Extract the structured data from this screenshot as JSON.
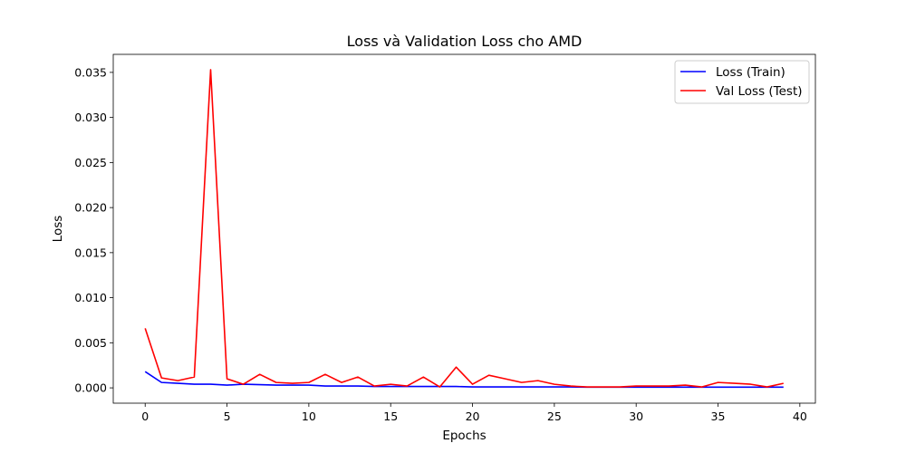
{
  "chart_data": {
    "type": "line",
    "title": "Loss và Validation Loss cho AMD",
    "xlabel": "Epochs",
    "ylabel": "Loss",
    "xlim": [
      -1.95,
      40.95
    ],
    "ylim": [
      -0.0017,
      0.037
    ],
    "xticks": [
      0,
      5,
      10,
      15,
      20,
      25,
      30,
      35,
      40
    ],
    "xtick_labels": [
      "0",
      "5",
      "10",
      "15",
      "20",
      "25",
      "30",
      "35",
      "40"
    ],
    "yticks": [
      0.0,
      0.005,
      0.01,
      0.015,
      0.02,
      0.025,
      0.03,
      0.035
    ],
    "ytick_labels": [
      "0.000",
      "0.005",
      "0.010",
      "0.015",
      "0.020",
      "0.025",
      "0.030",
      "0.035"
    ],
    "grid": false,
    "legend_position": "top-right",
    "x": [
      0,
      1,
      2,
      3,
      4,
      5,
      6,
      7,
      8,
      9,
      10,
      11,
      12,
      13,
      14,
      15,
      16,
      17,
      18,
      19,
      20,
      21,
      22,
      23,
      24,
      25,
      26,
      27,
      28,
      29,
      30,
      31,
      32,
      33,
      34,
      35,
      36,
      37,
      38,
      39
    ],
    "series": [
      {
        "name": "Loss (Train)",
        "color": "#0000ff",
        "values": [
          0.0018,
          0.0006,
          0.0005,
          0.0004,
          0.0004,
          0.0003,
          0.0004,
          0.00035,
          0.0003,
          0.0003,
          0.0003,
          0.0002,
          0.0002,
          0.0002,
          0.00015,
          0.00015,
          0.00015,
          0.00015,
          0.00015,
          0.00015,
          0.0001,
          0.0001,
          0.0001,
          0.0001,
          0.0001,
          0.0001,
          0.0001,
          8e-05,
          8e-05,
          8e-05,
          8e-05,
          8e-05,
          8e-05,
          8e-05,
          8e-05,
          8e-05,
          8e-05,
          8e-05,
          8e-05,
          8e-05
        ]
      },
      {
        "name": "Val Loss (Test)",
        "color": "#ff0000",
        "values": [
          0.0066,
          0.0011,
          0.0008,
          0.0012,
          0.0353,
          0.001,
          0.0004,
          0.0015,
          0.0006,
          0.0005,
          0.0006,
          0.0015,
          0.0006,
          0.0012,
          0.0002,
          0.0004,
          0.0002,
          0.0012,
          0.0001,
          0.0023,
          0.0004,
          0.0014,
          0.001,
          0.0006,
          0.0008,
          0.0004,
          0.0002,
          0.0001,
          0.0001,
          0.0001,
          0.0002,
          0.0002,
          0.0002,
          0.0003,
          0.0001,
          0.0006,
          0.0005,
          0.0004,
          0.0001,
          0.0005
        ]
      }
    ]
  }
}
